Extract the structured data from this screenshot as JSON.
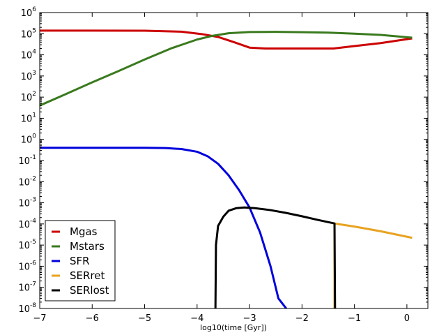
{
  "chart_data": {
    "type": "line",
    "title": "",
    "xlabel": "log10(time [Gyr])",
    "ylabel": "",
    "xlim": [
      -7,
      0.4
    ],
    "ylim_log10": [
      -8,
      6
    ],
    "yscale": "log",
    "grid": false,
    "legend_position": "lower-left",
    "x_ticks": [
      {
        "v": -7,
        "label": "−7"
      },
      {
        "v": -6,
        "label": "−6"
      },
      {
        "v": -5,
        "label": "−5"
      },
      {
        "v": -4,
        "label": "−4"
      },
      {
        "v": -3,
        "label": "−3"
      },
      {
        "v": -2,
        "label": "−2"
      },
      {
        "v": -1,
        "label": "−1"
      },
      {
        "v": 0,
        "label": "0"
      }
    ],
    "y_ticks": [
      {
        "exp": 6,
        "base": "10",
        "sup": "6"
      },
      {
        "exp": 5,
        "base": "10",
        "sup": "5"
      },
      {
        "exp": 4,
        "base": "10",
        "sup": "4"
      },
      {
        "exp": 3,
        "base": "10",
        "sup": "3"
      },
      {
        "exp": 2,
        "base": "10",
        "sup": "2"
      },
      {
        "exp": 1,
        "base": "10",
        "sup": "1"
      },
      {
        "exp": 0,
        "base": "10",
        "sup": "0"
      },
      {
        "exp": -1,
        "base": "10",
        "sup": "-1"
      },
      {
        "exp": -2,
        "base": "10",
        "sup": "-2"
      },
      {
        "exp": -3,
        "base": "10",
        "sup": "-3"
      },
      {
        "exp": -4,
        "base": "10",
        "sup": "-4"
      },
      {
        "exp": -5,
        "base": "10",
        "sup": "-5"
      },
      {
        "exp": -6,
        "base": "10",
        "sup": "-6"
      },
      {
        "exp": -7,
        "base": "10",
        "sup": "-7"
      },
      {
        "exp": -8,
        "base": "10",
        "sup": "-8"
      }
    ],
    "series": [
      {
        "name": "Mgas",
        "color": "#cc0000",
        "points": [
          [
            -7,
            140000.0
          ],
          [
            -6,
            140000.0
          ],
          [
            -5,
            138000.0
          ],
          [
            -4.3,
            125000.0
          ],
          [
            -3.9,
            95000.0
          ],
          [
            -3.6,
            70000.0
          ],
          [
            -3.3,
            40000.0
          ],
          [
            -3.0,
            22000.0
          ],
          [
            -2.7,
            20000.0
          ],
          [
            -2.0,
            20000.0
          ],
          [
            -1.4,
            20000.0
          ],
          [
            -1.0,
            26000.0
          ],
          [
            -0.5,
            36000.0
          ],
          [
            0.1,
            60000.0
          ]
        ]
      },
      {
        "name": "Mstars",
        "color": "#3a7a1e",
        "points": [
          [
            -7,
            40
          ],
          [
            -6.5,
            140
          ],
          [
            -6,
            500
          ],
          [
            -5.5,
            1700.0
          ],
          [
            -5,
            6000.0
          ],
          [
            -4.5,
            20000.0
          ],
          [
            -4,
            53000.0
          ],
          [
            -3.7,
            80000.0
          ],
          [
            -3.4,
            105000.0
          ],
          [
            -3.0,
            120000.0
          ],
          [
            -2.5,
            122000.0
          ],
          [
            -2.0,
            118000.0
          ],
          [
            -1.5,
            112000.0
          ],
          [
            -1.0,
            100000.0
          ],
          [
            -0.5,
            88000.0
          ],
          [
            0.1,
            65000.0
          ]
        ]
      },
      {
        "name": "SFR",
        "color": "#0000dd",
        "points": [
          [
            -7,
            0.4
          ],
          [
            -6,
            0.4
          ],
          [
            -5,
            0.4
          ],
          [
            -4.6,
            0.39
          ],
          [
            -4.3,
            0.35
          ],
          [
            -4.0,
            0.26
          ],
          [
            -3.8,
            0.16
          ],
          [
            -3.6,
            0.07
          ],
          [
            -3.4,
            0.02
          ],
          [
            -3.2,
            0.004
          ],
          [
            -3.0,
            0.0006
          ],
          [
            -2.8,
            4e-05
          ],
          [
            -2.6,
            1e-06
          ],
          [
            -2.45,
            3e-08
          ],
          [
            -2.3,
            1e-08
          ]
        ]
      },
      {
        "name": "SERret",
        "color": "#e8a321",
        "points": [
          [
            -1.38,
            1e-08
          ],
          [
            -1.38,
            0.000105
          ],
          [
            -1.0,
            7.5e-05
          ],
          [
            -0.5,
            4.5e-05
          ],
          [
            0.1,
            2.2e-05
          ]
        ]
      },
      {
        "name": "SERlost",
        "color": "#000000",
        "points": [
          [
            -3.65,
            1e-08
          ],
          [
            -3.64,
            1e-05
          ],
          [
            -3.6,
            8e-05
          ],
          [
            -3.5,
            0.00022
          ],
          [
            -3.4,
            0.00042
          ],
          [
            -3.25,
            0.00056
          ],
          [
            -3.1,
            0.0006
          ],
          [
            -2.9,
            0.00056
          ],
          [
            -2.6,
            0.00045
          ],
          [
            -2.3,
            0.00033
          ],
          [
            -2.0,
            0.00023
          ],
          [
            -1.7,
            0.000155
          ],
          [
            -1.38,
            0.000105
          ],
          [
            -1.37,
            1e-08
          ]
        ]
      }
    ]
  }
}
